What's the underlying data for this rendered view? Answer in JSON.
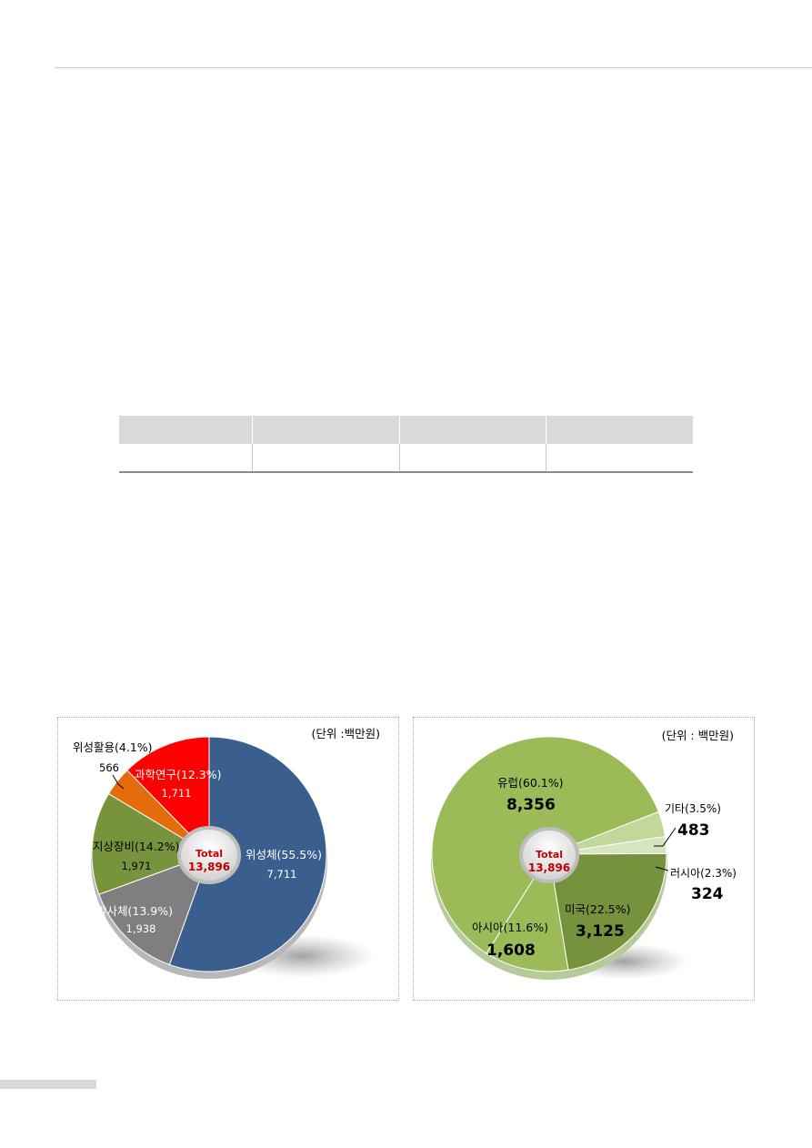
{
  "chart_data": [
    {
      "type": "pie",
      "unit_label": "(단위 :백만원)",
      "center_label": "Total",
      "center_value": "13,896",
      "slices": [
        {
          "name": "위성체",
          "percent_label": "(55.5%)",
          "value": 7711,
          "value_label": "7,711",
          "color": "#3a5f8e"
        },
        {
          "name": "발사체",
          "percent_label": "(13.9%)",
          "value": 1938,
          "value_label": "1,938",
          "color": "#7f7f7f"
        },
        {
          "name": "지상장비",
          "percent_label": "(14.2%)",
          "value": 1971,
          "value_label": "1,971",
          "color": "#77933c"
        },
        {
          "name": "위성활용",
          "percent_label": "(4.1%)",
          "value": 566,
          "value_label": "566",
          "color": "#e46c0a"
        },
        {
          "name": "과학연구",
          "percent_label": "(12.3%)",
          "value": 1711,
          "value_label": "1,711",
          "color": "#ff0000"
        }
      ]
    },
    {
      "type": "pie",
      "unit_label": "(단위 : 백만원)",
      "center_label": "Total",
      "center_value": "13,896",
      "slices": [
        {
          "name": "유럽",
          "percent_label": "(60.1%)",
          "value": 8356,
          "value_label": "8,356",
          "color": "#9bbb59"
        },
        {
          "name": "기타",
          "percent_label": "(3.5%)",
          "value": 483,
          "value_label": "483",
          "color": "#c4d79b"
        },
        {
          "name": "러시아",
          "percent_label": "(2.3%)",
          "value": 324,
          "value_label": "324",
          "color": "#d7e4bd"
        },
        {
          "name": "미국",
          "percent_label": "(22.5%)",
          "value": 3125,
          "value_label": "3,125",
          "color": "#76923c"
        },
        {
          "name": "아시아",
          "percent_label": "(11.6%)",
          "value": 1608,
          "value_label": "1,608",
          "color": "#9bbb59"
        }
      ]
    }
  ]
}
